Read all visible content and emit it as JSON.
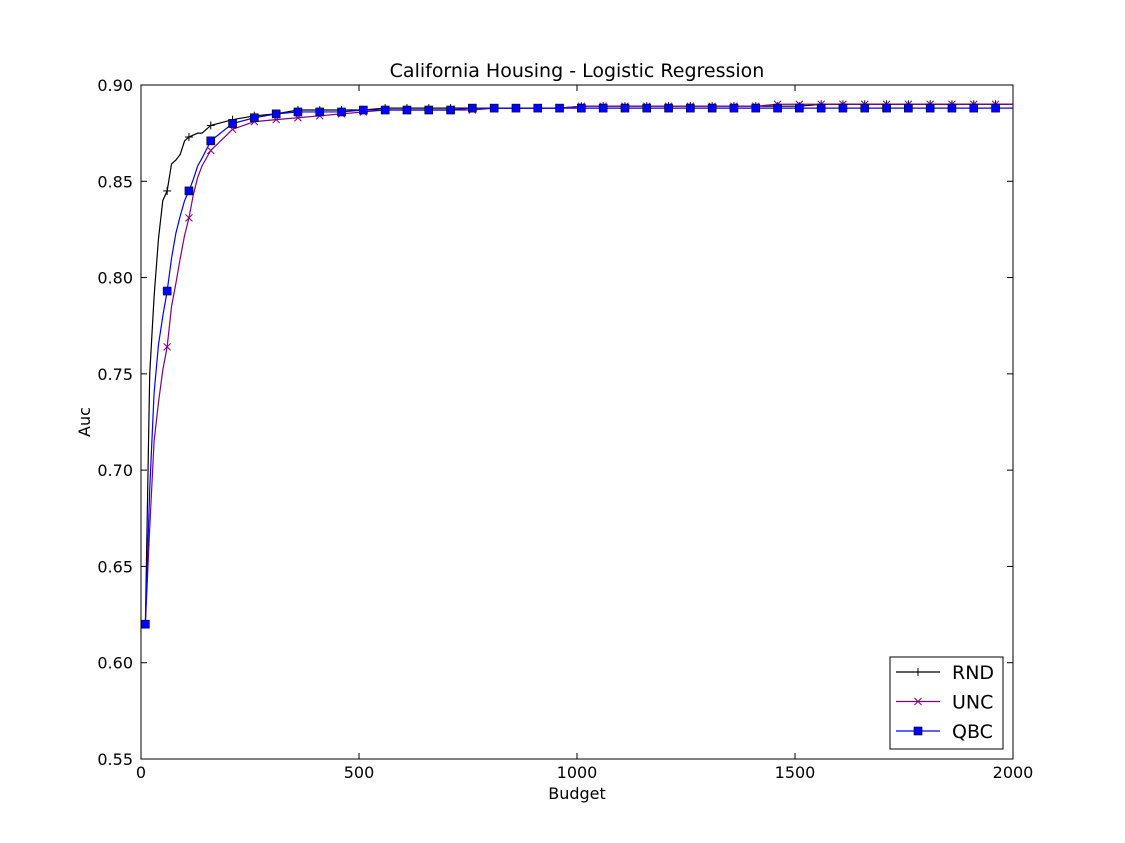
{
  "chart_data": {
    "type": "line",
    "title": "California Housing - Logistic Regression",
    "xlabel": "Budget",
    "ylabel": "Auc",
    "xlim": [
      0,
      2000
    ],
    "ylim": [
      0.55,
      0.9
    ],
    "xticks": [
      0,
      500,
      1000,
      1500,
      2000
    ],
    "xtick_labels": [
      "0",
      "500",
      "1000",
      "1500",
      "2000"
    ],
    "yticks": [
      0.55,
      0.6,
      0.65,
      0.7,
      0.75,
      0.8,
      0.85,
      0.9
    ],
    "ytick_labels": [
      "0.55",
      "0.60",
      "0.65",
      "0.70",
      "0.75",
      "0.80",
      "0.85",
      "0.90"
    ],
    "grid": false,
    "legend_position": "lower-right",
    "series": [
      {
        "name": "RND",
        "color": "#000000",
        "marker": "plus",
        "x": [
          10,
          20,
          30,
          40,
          50,
          60,
          70,
          80,
          90,
          100,
          110,
          120,
          130,
          140,
          160,
          210,
          260,
          310,
          360,
          410,
          460,
          510,
          560,
          610,
          660,
          710,
          760,
          810,
          860,
          910,
          960,
          1010,
          1060,
          1110,
          1160,
          1210,
          1260,
          1310,
          1360,
          1410,
          1460,
          1510,
          1560,
          1610,
          1660,
          1710,
          1760,
          1810,
          1860,
          1910,
          1960,
          2000
        ],
        "y": [
          0.62,
          0.75,
          0.79,
          0.82,
          0.84,
          0.845,
          0.859,
          0.861,
          0.864,
          0.871,
          0.873,
          0.874,
          0.875,
          0.875,
          0.879,
          0.882,
          0.884,
          0.885,
          0.887,
          0.887,
          0.887,
          0.887,
          0.888,
          0.888,
          0.888,
          0.888,
          0.888,
          0.888,
          0.888,
          0.888,
          0.888,
          0.889,
          0.889,
          0.889,
          0.889,
          0.889,
          0.889,
          0.889,
          0.889,
          0.889,
          0.889,
          0.889,
          0.89,
          0.89,
          0.89,
          0.89,
          0.89,
          0.89,
          0.89,
          0.89,
          0.89,
          0.89
        ],
        "marker_x": [
          10,
          60,
          110,
          160,
          210,
          260,
          310,
          360,
          410,
          460,
          510,
          560,
          610,
          660,
          710,
          760,
          810,
          860,
          910,
          960,
          1010,
          1060,
          1110,
          1160,
          1210,
          1260,
          1310,
          1360,
          1410,
          1460,
          1510,
          1560,
          1610,
          1660,
          1710,
          1760,
          1810,
          1860,
          1910,
          1960
        ]
      },
      {
        "name": "UNC",
        "color": "#800080",
        "marker": "x",
        "x": [
          10,
          20,
          30,
          40,
          50,
          60,
          70,
          80,
          90,
          100,
          110,
          120,
          130,
          140,
          160,
          210,
          260,
          310,
          360,
          410,
          460,
          510,
          560,
          610,
          660,
          710,
          760,
          810,
          860,
          910,
          960,
          1010,
          1060,
          1110,
          1160,
          1210,
          1260,
          1310,
          1360,
          1410,
          1460,
          1510,
          1560,
          1610,
          1660,
          1710,
          1760,
          1810,
          1860,
          1910,
          1960,
          2000
        ],
        "y": [
          0.62,
          0.67,
          0.715,
          0.735,
          0.752,
          0.764,
          0.785,
          0.797,
          0.81,
          0.822,
          0.831,
          0.843,
          0.852,
          0.858,
          0.866,
          0.877,
          0.881,
          0.882,
          0.883,
          0.884,
          0.885,
          0.886,
          0.887,
          0.887,
          0.887,
          0.887,
          0.887,
          0.888,
          0.888,
          0.888,
          0.888,
          0.889,
          0.889,
          0.889,
          0.889,
          0.889,
          0.889,
          0.889,
          0.889,
          0.889,
          0.89,
          0.89,
          0.89,
          0.89,
          0.89,
          0.89,
          0.89,
          0.89,
          0.89,
          0.89,
          0.89,
          0.89
        ],
        "marker_x": [
          10,
          60,
          110,
          160,
          210,
          260,
          310,
          360,
          410,
          460,
          510,
          560,
          610,
          660,
          710,
          760,
          810,
          860,
          910,
          960,
          1010,
          1060,
          1110,
          1160,
          1210,
          1260,
          1310,
          1360,
          1410,
          1460,
          1510,
          1560,
          1610,
          1660,
          1710,
          1760,
          1810,
          1860,
          1910,
          1960
        ]
      },
      {
        "name": "QBC",
        "color": "#0000ff",
        "marker": "square",
        "x": [
          10,
          20,
          30,
          40,
          50,
          60,
          70,
          80,
          90,
          100,
          110,
          120,
          130,
          140,
          160,
          210,
          260,
          310,
          360,
          410,
          460,
          510,
          560,
          610,
          660,
          710,
          760,
          810,
          860,
          910,
          960,
          1010,
          1060,
          1110,
          1160,
          1210,
          1260,
          1310,
          1360,
          1410,
          1460,
          1510,
          1560,
          1610,
          1660,
          1710,
          1760,
          1810,
          1860,
          1910,
          1960,
          2000
        ],
        "y": [
          0.62,
          0.69,
          0.74,
          0.765,
          0.78,
          0.793,
          0.81,
          0.823,
          0.832,
          0.84,
          0.845,
          0.851,
          0.858,
          0.862,
          0.871,
          0.88,
          0.883,
          0.885,
          0.886,
          0.886,
          0.886,
          0.887,
          0.887,
          0.887,
          0.887,
          0.887,
          0.888,
          0.888,
          0.888,
          0.888,
          0.888,
          0.888,
          0.888,
          0.888,
          0.888,
          0.888,
          0.888,
          0.888,
          0.888,
          0.888,
          0.888,
          0.888,
          0.888,
          0.888,
          0.888,
          0.888,
          0.888,
          0.888,
          0.888,
          0.888,
          0.888,
          0.888
        ],
        "marker_x": [
          10,
          60,
          110,
          160,
          210,
          260,
          310,
          360,
          410,
          460,
          510,
          560,
          610,
          660,
          710,
          760,
          810,
          860,
          910,
          960,
          1010,
          1060,
          1110,
          1160,
          1210,
          1260,
          1310,
          1360,
          1410,
          1460,
          1510,
          1560,
          1610,
          1660,
          1710,
          1760,
          1810,
          1860,
          1910,
          1960
        ]
      }
    ]
  }
}
